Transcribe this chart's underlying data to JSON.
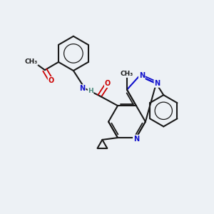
{
  "bg_color": "#edf1f5",
  "bond_color": "#1a1a1a",
  "nitrogen_color": "#1010cc",
  "oxygen_color": "#cc0000",
  "nh_color": "#4a8a7a",
  "figsize": [
    3.0,
    3.0
  ],
  "dpi": 100,
  "xlim": [
    0,
    10
  ],
  "ylim": [
    0,
    10
  ]
}
